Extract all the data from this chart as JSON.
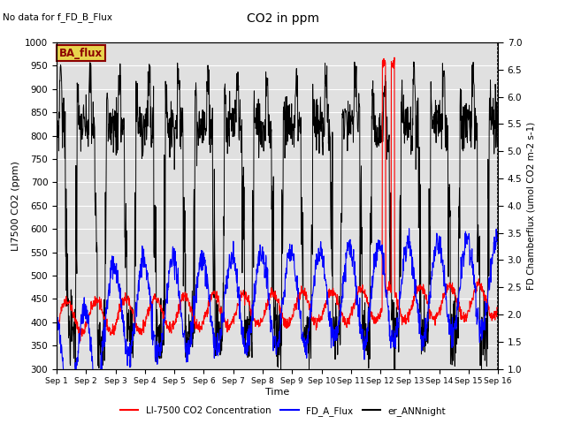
{
  "title": "CO2 in ppm",
  "top_left_text": "No data for f_FD_B_Flux",
  "ba_flux_label": "BA_flux",
  "xlabel": "Time",
  "ylabel_left": "LI7500 CO2 (ppm)",
  "ylabel_right": "FD Chamberflux (umol CO2 m-2 s-1)",
  "ylim_left": [
    300,
    1000
  ],
  "ylim_right": [
    1.0,
    7.0
  ],
  "xticklabels": [
    "Sep 1",
    "Sep 2",
    "Sep 3",
    "Sep 4",
    "Sep 5",
    "Sep 6",
    "Sep 7",
    "Sep 8",
    "Sep 9",
    "Sep 10",
    "Sep 11",
    "Sep 12",
    "Sep 13",
    "Sep 14",
    "Sep 15",
    "Sep 16"
  ],
  "bg_color": "#e0e0e0",
  "fig_bg_color": "#ffffff",
  "n_days": 15,
  "points_per_day": 96
}
